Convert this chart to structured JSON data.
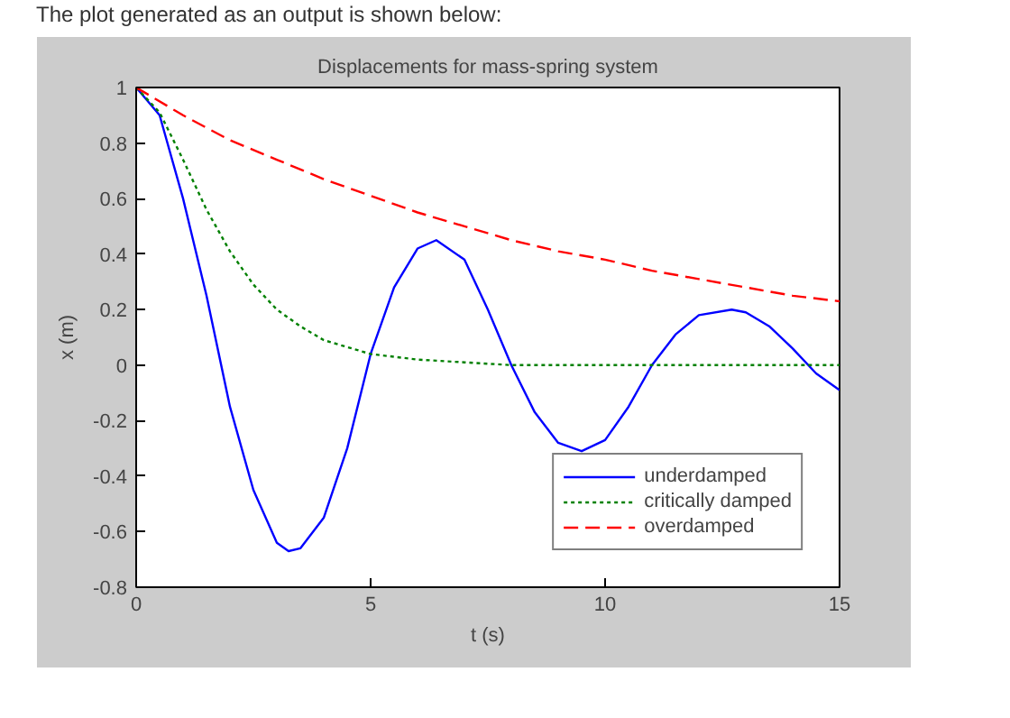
{
  "chart_data": {
    "type": "line",
    "title": "Displacements for mass-spring system",
    "xlabel": "t (s)",
    "ylabel": "x (m)",
    "annotations": [
      "The plot generated as an output is shown below:"
    ],
    "xlim": [
      0,
      15
    ],
    "xticks": [
      0,
      5,
      10,
      15
    ],
    "ylim": [
      -0.8,
      1
    ],
    "yticks": [
      -0.8,
      -0.6,
      -0.4,
      -0.2,
      0,
      0.2,
      0.4,
      0.6,
      0.8,
      1
    ],
    "grid": false,
    "legend": "bottom right",
    "marker": "none",
    "series": [
      {
        "name": "underdamped",
        "color": "#0000ff",
        "line_style": "solid",
        "x": [
          0,
          0.5,
          1,
          1.5,
          2,
          2.5,
          3,
          3.25,
          3.5,
          4,
          4.5,
          5,
          5.5,
          6,
          6.4,
          7,
          7.5,
          8,
          8.5,
          9,
          9.5,
          10,
          10.5,
          11,
          11.5,
          12,
          12.7,
          13,
          13.5,
          14,
          14.5,
          15
        ],
        "values": [
          1,
          0.9,
          0.6,
          0.25,
          -0.15,
          -0.45,
          -0.64,
          -0.67,
          -0.66,
          -0.55,
          -0.3,
          0.04,
          0.28,
          0.42,
          0.45,
          0.38,
          0.2,
          0.0,
          -0.17,
          -0.28,
          -0.31,
          -0.27,
          -0.15,
          0.0,
          0.11,
          0.18,
          0.2,
          0.19,
          0.14,
          0.06,
          -0.03,
          -0.09
        ]
      },
      {
        "name": "critically damped",
        "color": "#008000",
        "line_style": "dotted",
        "x": [
          0,
          0.5,
          1,
          1.5,
          2,
          2.5,
          3,
          3.5,
          4,
          5,
          6,
          7,
          8,
          10,
          12,
          15
        ],
        "values": [
          1,
          0.91,
          0.74,
          0.56,
          0.41,
          0.29,
          0.2,
          0.14,
          0.09,
          0.04,
          0.02,
          0.01,
          0,
          0,
          0,
          0
        ]
      },
      {
        "name": "overdamped",
        "color": "#ff0000",
        "line_style": "dashed",
        "x": [
          0,
          1,
          2,
          3,
          4,
          5,
          6,
          7,
          8,
          9,
          10,
          11,
          12,
          13,
          14,
          15
        ],
        "values": [
          1,
          0.9,
          0.81,
          0.74,
          0.67,
          0.61,
          0.55,
          0.5,
          0.45,
          0.41,
          0.38,
          0.34,
          0.31,
          0.28,
          0.25,
          0.23
        ]
      }
    ]
  }
}
